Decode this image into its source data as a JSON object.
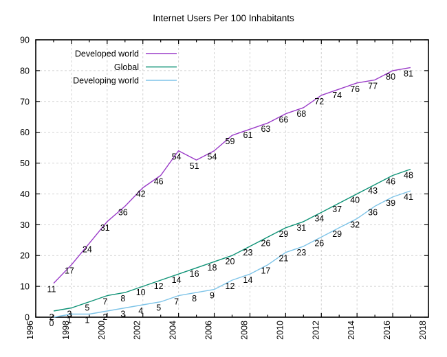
{
  "chart_data": {
    "type": "line",
    "title": "Internet Users Per 100 Inhabitants",
    "xlabel": "",
    "ylabel": "",
    "x": [
      1997,
      1998,
      1999,
      2000,
      2001,
      2002,
      2003,
      2004,
      2005,
      2006,
      2007,
      2008,
      2009,
      2010,
      2011,
      2012,
      2013,
      2014,
      2015,
      2016,
      2017
    ],
    "series": [
      {
        "name": "Developed world",
        "color": "#9a3bc8",
        "values": [
          11,
          17,
          24,
          31,
          36,
          42,
          46,
          54,
          51,
          54,
          59,
          61,
          63,
          66,
          68,
          72,
          74,
          76,
          77,
          80,
          81
        ]
      },
      {
        "name": "Global",
        "color": "#0e9276",
        "values": [
          2,
          3,
          5,
          7,
          8,
          10,
          12,
          14,
          16,
          18,
          20,
          23,
          26,
          29,
          31,
          34,
          37,
          40,
          43,
          46,
          48
        ]
      },
      {
        "name": "Developing world",
        "color": "#7ec4e8",
        "values": [
          0,
          1,
          1,
          2,
          3,
          4,
          5,
          7,
          8,
          9,
          12,
          14,
          17,
          21,
          23,
          26,
          29,
          32,
          36,
          39,
          41
        ]
      }
    ],
    "xlim": [
      1996,
      2018
    ],
    "ylim": [
      0,
      90
    ],
    "xtick_major_step": 2,
    "xtick_minor_step": 1,
    "ytick_step": 10,
    "xtick_labels": [
      "1996",
      "1998",
      "2000",
      "2002",
      "2004",
      "2006",
      "2008",
      "2010",
      "2012",
      "2014",
      "2016",
      "2018"
    ],
    "ytick_labels": [
      "0",
      "10",
      "20",
      "30",
      "40",
      "50",
      "60",
      "70",
      "80",
      "90"
    ],
    "x_tick_labels_rotated": true,
    "grid": true,
    "point_labels": true,
    "legend_position": "top-left",
    "colors": {
      "background": "#ffffff",
      "plot_border": "#000000",
      "gridline": "#d2d2d2",
      "tick": "#000000",
      "text": "#000000"
    }
  }
}
